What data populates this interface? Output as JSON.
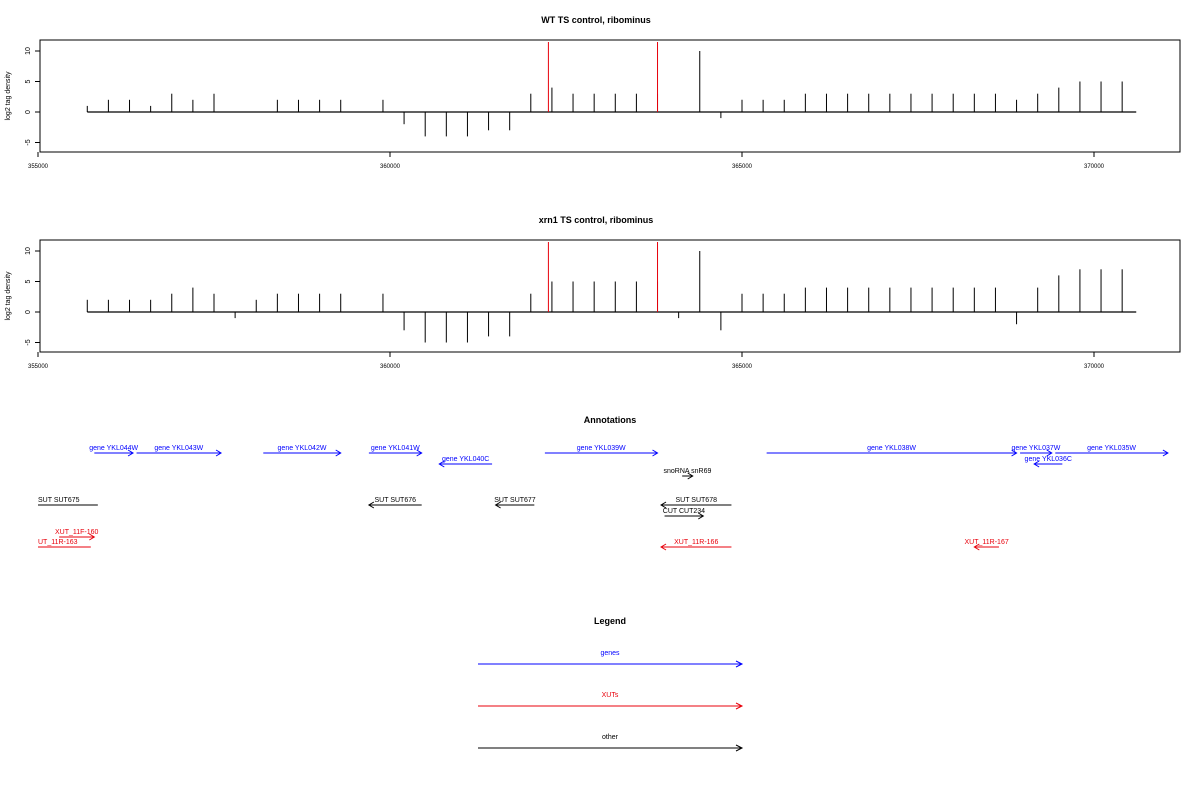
{
  "chart_data": [
    {
      "type": "bar",
      "title": "WT TS control, ribominus",
      "ylabel": "log2 tag density",
      "xlim": [
        355000,
        370000
      ],
      "ylim": [
        -5,
        10
      ],
      "x_ticks": [
        355000,
        360000,
        365000,
        370000
      ],
      "y_ticks": [
        -5,
        0,
        5,
        10
      ],
      "grid": false,
      "markers": [
        362250,
        363800
      ],
      "marker_color": "#e8000b",
      "bar_color": "#000000",
      "x": [
        355700,
        356000,
        356300,
        356600,
        356900,
        357200,
        357500,
        357800,
        358100,
        358400,
        358700,
        359000,
        359300,
        359600,
        359900,
        360200,
        360500,
        360800,
        361100,
        361400,
        361700,
        362000,
        362300,
        362600,
        362900,
        363200,
        363500,
        363800,
        364100,
        364400,
        364700,
        365000,
        365300,
        365600,
        365900,
        366200,
        366500,
        366800,
        367100,
        367400,
        367700,
        368000,
        368300,
        368600,
        368900,
        369200,
        369500,
        369800,
        370100,
        370400
      ],
      "values": [
        1,
        2,
        2,
        1,
        3,
        2,
        3,
        0,
        0,
        2,
        2,
        2,
        2,
        0,
        2,
        -2,
        -4,
        -4,
        -4,
        -3,
        -3,
        3,
        4,
        3,
        3,
        3,
        3,
        3,
        0,
        10,
        -1,
        2,
        2,
        2,
        3,
        3,
        3,
        3,
        3,
        3,
        3,
        3,
        3,
        3,
        2,
        3,
        4,
        5,
        5,
        5
      ]
    },
    {
      "type": "bar",
      "title": "xrn1 TS control, ribominus",
      "ylabel": "log2 tag density",
      "xlim": [
        355000,
        370000
      ],
      "ylim": [
        -5,
        10
      ],
      "x_ticks": [
        355000,
        360000,
        365000,
        370000
      ],
      "y_ticks": [
        -5,
        0,
        5,
        10
      ],
      "grid": false,
      "markers": [
        362250,
        363800
      ],
      "marker_color": "#e8000b",
      "bar_color": "#000000",
      "x": [
        355700,
        356000,
        356300,
        356600,
        356900,
        357200,
        357500,
        357800,
        358100,
        358400,
        358700,
        359000,
        359300,
        359600,
        359900,
        360200,
        360500,
        360800,
        361100,
        361400,
        361700,
        362000,
        362300,
        362600,
        362900,
        363200,
        363500,
        363800,
        364100,
        364400,
        364700,
        365000,
        365300,
        365600,
        365900,
        366200,
        366500,
        366800,
        367100,
        367400,
        367700,
        368000,
        368300,
        368600,
        368900,
        369200,
        369500,
        369800,
        370100,
        370400
      ],
      "values": [
        2,
        2,
        2,
        2,
        3,
        4,
        3,
        -1,
        2,
        3,
        3,
        3,
        3,
        0,
        3,
        -3,
        -5,
        -5,
        -5,
        -4,
        -4,
        3,
        5,
        5,
        5,
        5,
        5,
        5,
        -1,
        10,
        -3,
        3,
        3,
        3,
        4,
        4,
        4,
        4,
        4,
        4,
        4,
        4,
        4,
        4,
        -2,
        4,
        6,
        7,
        7,
        7
      ]
    }
  ],
  "annotations": {
    "title": "Annotations",
    "features": [
      {
        "label": "gene YKL044W",
        "color": "#0000ff",
        "start": 355800,
        "end": 356350,
        "dir": "+",
        "row": 0
      },
      {
        "label": "gene YKL043W",
        "color": "#0000ff",
        "start": 356400,
        "end": 357600,
        "dir": "+",
        "row": 0
      },
      {
        "label": "gene YKL042W",
        "color": "#0000ff",
        "start": 358200,
        "end": 359300,
        "dir": "+",
        "row": 0
      },
      {
        "label": "gene YKL041W",
        "color": "#0000ff",
        "start": 359700,
        "end": 360450,
        "dir": "+",
        "row": 0
      },
      {
        "label": "gene YKL040C",
        "color": "#0000ff",
        "start": 360700,
        "end": 361450,
        "dir": "-",
        "row": 1
      },
      {
        "label": "gene YKL039W",
        "color": "#0000ff",
        "start": 362200,
        "end": 363800,
        "dir": "+",
        "row": 0
      },
      {
        "label": "snoRNA snR69",
        "color": "#000000",
        "start": 364150,
        "end": 364300,
        "dir": "+",
        "row": 2
      },
      {
        "label": "gene YKL038W",
        "color": "#0000ff",
        "start": 365350,
        "end": 368900,
        "dir": "+",
        "row": 0
      },
      {
        "label": "gene YKL037W",
        "color": "#0000ff",
        "start": 368950,
        "end": 369400,
        "dir": "+",
        "row": 0
      },
      {
        "label": "gene YKL036C",
        "color": "#0000ff",
        "start": 369150,
        "end": 369550,
        "dir": "-",
        "row": 1
      },
      {
        "label": "gene YKL035W",
        "color": "#0000ff",
        "start": 369450,
        "end": 371050,
        "dir": "+",
        "row": 0
      },
      {
        "label": "SUT SUT675",
        "color": "#000000",
        "start": 355000,
        "end": 355850,
        "dir": "none",
        "row": 3
      },
      {
        "label": "SUT SUT676",
        "color": "#000000",
        "start": 359700,
        "end": 360450,
        "dir": "-",
        "row": 3
      },
      {
        "label": "SUT SUT677",
        "color": "#000000",
        "start": 361500,
        "end": 362050,
        "dir": "-",
        "row": 3
      },
      {
        "label": "SUT SUT678",
        "color": "#000000",
        "start": 363850,
        "end": 364850,
        "dir": "-",
        "row": 3
      },
      {
        "label": "CUT CUT234",
        "color": "#000000",
        "start": 363900,
        "end": 364450,
        "dir": "+",
        "row": 4
      },
      {
        "label": "XUT_11F-160",
        "color": "#e8000b",
        "start": 355300,
        "end": 355800,
        "dir": "+",
        "row": 5
      },
      {
        "label": "UT_11R-163",
        "color": "#e8000b",
        "start": 355000,
        "end": 355750,
        "dir": "none",
        "row": 6
      },
      {
        "label": "XUT_11R-166",
        "color": "#e8000b",
        "start": 363850,
        "end": 364850,
        "dir": "-",
        "row": 6
      },
      {
        "label": "XUT_11R-167",
        "color": "#e8000b",
        "start": 368300,
        "end": 368650,
        "dir": "-",
        "row": 6
      }
    ]
  },
  "legend": {
    "title": "Legend",
    "entries": [
      {
        "label": "genes",
        "color": "#0000ff"
      },
      {
        "label": "XUTs",
        "color": "#e8000b"
      },
      {
        "label": "other",
        "color": "#000000"
      }
    ]
  }
}
